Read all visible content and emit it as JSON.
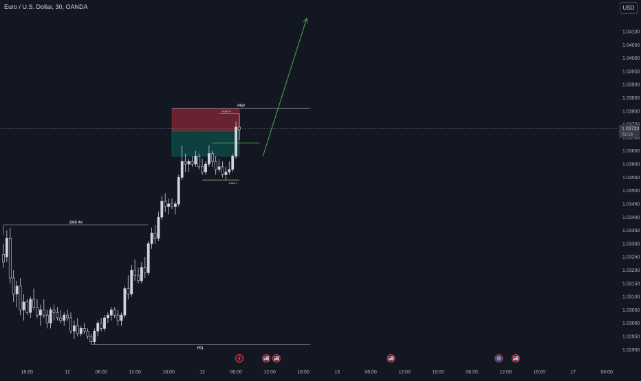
{
  "header": {
    "symbol_title": "Euro / U.S. Dollar, 30, OANDA",
    "currency_label": "USD"
  },
  "colors": {
    "background": "#131722",
    "axis_text": "#b2b5be",
    "candle": "#d1d4dc",
    "supply_zone": "#f23645",
    "demand_zone": "#089981",
    "arrow": "#4caf50",
    "level_line": "#b2b5be",
    "sweep_line": "#c9a26b",
    "price_badge": "#363a45"
  },
  "chart_data": {
    "type": "candlestick",
    "ylim": [
      1.0288,
      1.0417
    ],
    "y_ticks": [
      "1.04100",
      "1.04050",
      "1.04000",
      "1.03950",
      "1.03900",
      "1.03850",
      "1.03800",
      "1.03750",
      "1.03700",
      "1.03650",
      "1.03600",
      "1.03550",
      "1.03500",
      "1.03450",
      "1.03400",
      "1.03350",
      "1.03300",
      "1.03250",
      "1.03200",
      "1.03150",
      "1.03100",
      "1.03050",
      "1.03000",
      "1.02950",
      "1.02900"
    ],
    "x_labels": [
      {
        "label": "18:00",
        "bar": 7
      },
      {
        "label": "11",
        "bar": 19
      },
      {
        "label": "06:00",
        "bar": 29
      },
      {
        "label": "12:00",
        "bar": 39
      },
      {
        "label": "18:00",
        "bar": 49
      },
      {
        "label": "12",
        "bar": 59
      },
      {
        "label": "06:00",
        "bar": 69
      },
      {
        "label": "12:00",
        "bar": 79
      },
      {
        "label": "18:00",
        "bar": 89
      },
      {
        "label": "13",
        "bar": 99
      },
      {
        "label": "06:00",
        "bar": 109
      },
      {
        "label": "12:00",
        "bar": 119
      },
      {
        "label": "18:00",
        "bar": 129
      },
      {
        "label": "06:00",
        "bar": 139
      },
      {
        "label": "12:00",
        "bar": 149
      },
      {
        "label": "18:00",
        "bar": 159
      },
      {
        "label": "17",
        "bar": 169
      },
      {
        "label": "06:00",
        "bar": 179
      }
    ],
    "last_price": "1.03733",
    "countdown": "02:16",
    "candles": [
      [
        1.0326,
        1.033,
        1.0321,
        1.0323
      ],
      [
        1.0325,
        1.0335,
        1.0323,
        1.0332
      ],
      [
        1.0332,
        1.0336,
        1.0315,
        1.0317
      ],
      [
        1.0317,
        1.032,
        1.0308,
        1.0311
      ],
      [
        1.0311,
        1.0316,
        1.0306,
        1.0314
      ],
      [
        1.0314,
        1.0317,
        1.0303,
        1.0305
      ],
      [
        1.0305,
        1.0311,
        1.0301,
        1.0308
      ],
      [
        1.0308,
        1.0309,
        1.0303,
        1.0304
      ],
      [
        1.0304,
        1.031,
        1.0302,
        1.0309
      ],
      [
        1.0309,
        1.0313,
        1.0305,
        1.0306
      ],
      [
        1.0306,
        1.0309,
        1.0302,
        1.0303
      ],
      [
        1.0303,
        1.0307,
        1.0299,
        1.0305
      ],
      [
        1.0305,
        1.0309,
        1.0302,
        1.0303
      ],
      [
        1.0303,
        1.0305,
        1.0298,
        1.03
      ],
      [
        1.03,
        1.0306,
        1.0298,
        1.0305
      ],
      [
        1.0305,
        1.0307,
        1.0301,
        1.0304
      ],
      [
        1.0304,
        1.0306,
        1.0301,
        1.0302
      ],
      [
        1.0302,
        1.0305,
        1.03,
        1.0301
      ],
      [
        1.0301,
        1.0304,
        1.0299,
        1.0303
      ],
      [
        1.0303,
        1.0305,
        1.0301,
        1.0302
      ],
      [
        1.0302,
        1.0304,
        1.0296,
        1.0297
      ],
      [
        1.0297,
        1.0301,
        1.0294,
        1.0299
      ],
      [
        1.0299,
        1.0302,
        1.0295,
        1.0296
      ],
      [
        1.0296,
        1.0299,
        1.0295,
        1.0298
      ],
      [
        1.0298,
        1.03,
        1.0296,
        1.0297
      ],
      [
        1.0297,
        1.0298,
        1.0294,
        1.0295
      ],
      [
        1.0295,
        1.0296,
        1.0292,
        1.0293
      ],
      [
        1.0293,
        1.0298,
        1.0292,
        1.0297
      ],
      [
        1.0297,
        1.0301,
        1.0295,
        1.03
      ],
      [
        1.03,
        1.0302,
        1.0297,
        1.0298
      ],
      [
        1.0298,
        1.0303,
        1.0297,
        1.0302
      ],
      [
        1.0302,
        1.0304,
        1.03,
        1.0303
      ],
      [
        1.0303,
        1.0306,
        1.0301,
        1.0305
      ],
      [
        1.0305,
        1.0306,
        1.0302,
        1.0303
      ],
      [
        1.0303,
        1.0305,
        1.0299,
        1.0301
      ],
      [
        1.0301,
        1.0304,
        1.0299,
        1.0303
      ],
      [
        1.0303,
        1.0314,
        1.0302,
        1.0313
      ],
      [
        1.0313,
        1.0318,
        1.0309,
        1.0311
      ],
      [
        1.0311,
        1.0322,
        1.031,
        1.032
      ],
      [
        1.032,
        1.0324,
        1.0316,
        1.0318
      ],
      [
        1.0318,
        1.0321,
        1.0315,
        1.0316
      ],
      [
        1.0316,
        1.0323,
        1.0315,
        1.0321
      ],
      [
        1.0321,
        1.0325,
        1.0317,
        1.0319
      ],
      [
        1.0319,
        1.0331,
        1.0318,
        1.033
      ],
      [
        1.033,
        1.0336,
        1.0328,
        1.0334
      ],
      [
        1.0334,
        1.0337,
        1.033,
        1.0332
      ],
      [
        1.0332,
        1.0342,
        1.0331,
        1.034
      ],
      [
        1.034,
        1.0348,
        1.0339,
        1.0346
      ],
      [
        1.0346,
        1.0349,
        1.0342,
        1.0344
      ],
      [
        1.0344,
        1.0347,
        1.0341,
        1.0345
      ],
      [
        1.0345,
        1.0347,
        1.0343,
        1.0344
      ],
      [
        1.0344,
        1.0346,
        1.0341,
        1.0345
      ],
      [
        1.0345,
        1.0356,
        1.0344,
        1.0355
      ],
      [
        1.0355,
        1.0367,
        1.0354,
        1.0361
      ],
      [
        1.0361,
        1.0364,
        1.0357,
        1.036
      ],
      [
        1.036,
        1.0362,
        1.0357,
        1.0361
      ],
      [
        1.0361,
        1.0363,
        1.0359,
        1.036
      ],
      [
        1.036,
        1.0365,
        1.0359,
        1.0363
      ],
      [
        1.0363,
        1.0364,
        1.0358,
        1.0359
      ],
      [
        1.0359,
        1.0362,
        1.0356,
        1.0357
      ],
      [
        1.0357,
        1.0361,
        1.0356,
        1.036
      ],
      [
        1.036,
        1.0367,
        1.0359,
        1.0364
      ],
      [
        1.0364,
        1.0365,
        1.0359,
        1.0361
      ],
      [
        1.0361,
        1.0363,
        1.0356,
        1.0358
      ],
      [
        1.0358,
        1.0362,
        1.0357,
        1.0359
      ],
      [
        1.0359,
        1.0361,
        1.0355,
        1.0356
      ],
      [
        1.0356,
        1.0359,
        1.0354,
        1.0357
      ],
      [
        1.0357,
        1.0361,
        1.0356,
        1.0358
      ],
      [
        1.0358,
        1.0364,
        1.0357,
        1.0363
      ],
      [
        1.0363,
        1.0376,
        1.0362,
        1.0374
      ],
      [
        1.0374,
        1.0379,
        1.0369,
        1.0373
      ]
    ],
    "annotations": {
      "bos": {
        "label": "BOS 4H",
        "price": 1.0337,
        "from_bar": 0,
        "to_bar": 43
      },
      "pdh": {
        "label": "PDH",
        "price": 1.0381,
        "from_bar": 50,
        "to_bar": 91
      },
      "pdl": {
        "label": "PDL",
        "price": 1.0292,
        "from_bar": 26,
        "to_bar": 91
      },
      "asia_high": {
        "label": "ASIA H",
        "price": 1.0379,
        "from_bar": 64,
        "to_bar": 70
      },
      "asia_low": {
        "label": "ASIA L",
        "price": 1.0354,
        "from_bar": 59,
        "to_bar": 70
      },
      "supply_zone": {
        "top": 1.0381,
        "bottom": 1.03725,
        "from_bar": 50,
        "to_bar": 70
      },
      "demand_zone": {
        "top": 1.03725,
        "bottom": 1.0363,
        "from_bar": 50,
        "to_bar": 70
      },
      "entry_line": {
        "price": 1.0368,
        "from_bar": 62,
        "to_bar": 76
      },
      "projection_arrow": {
        "from_bar": 77,
        "from_price": 1.0363,
        "to_bar": 90,
        "to_price": 1.0415
      }
    },
    "events": [
      {
        "kind": "lightning-event-icon",
        "bar": 70
      },
      {
        "kind": "us-flag-event-icon",
        "bar": 78
      },
      {
        "kind": "us-flag-event-icon",
        "bar": 81
      },
      {
        "kind": "us-flag-event-icon",
        "bar": 115
      },
      {
        "kind": "globe-event-icon",
        "bar": 147
      },
      {
        "kind": "us-flag-event-icon",
        "bar": 152
      }
    ]
  }
}
